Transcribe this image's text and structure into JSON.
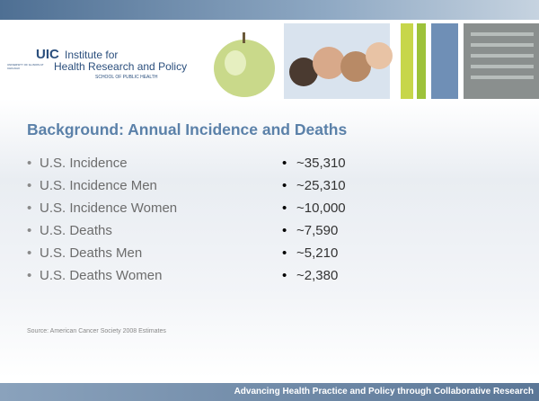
{
  "header": {
    "brand": "UIC",
    "line1": "Institute for",
    "line2": "Health Research and Policy",
    "school": "SCHOOL OF PUBLIC HEALTH",
    "university": "UNIVERSITY OF ILLINOIS AT CHICAGO"
  },
  "title": "Background: Annual Incidence and Deaths",
  "items": [
    {
      "label": "U.S. Incidence",
      "value": "~35,310"
    },
    {
      "label": "U.S. Incidence Men",
      "value": "~25,310"
    },
    {
      "label": "U.S. Incidence Women",
      "value": "~10,000"
    },
    {
      "label": "U.S. Deaths",
      "value": "~7,590"
    },
    {
      "label": "U.S. Deaths Men",
      "value": "~5,210"
    },
    {
      "label": "U.S. Deaths Women",
      "value": "~2,380"
    }
  ],
  "source": "Source: American Cancer Society 2008 Estimates",
  "footer": "Advancing Health Practice and Policy through Collaborative Research"
}
